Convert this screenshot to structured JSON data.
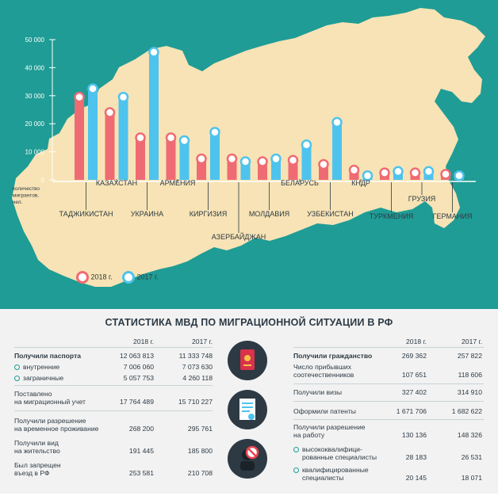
{
  "chart_data": {
    "type": "bar",
    "ylabel": "количество мигрантов, чел.",
    "ylim": [
      0,
      50000
    ],
    "yticks": [
      "0",
      "10 000",
      "20 000",
      "30 000",
      "40 000",
      "50 000"
    ],
    "categories": [
      "ТАДЖИКИСТАН",
      "КАЗАХСТАН",
      "УКРАИНА",
      "АРМЕНИЯ",
      "КИРГИЗИЯ",
      "АЗЕРБАЙДЖАН",
      "МОЛДАВИЯ",
      "БЕЛАРУСЬ",
      "УЗБЕКИСТАН",
      "КНДР",
      "ТУРКМЕНИЯ",
      "ГРУЗИЯ",
      "ГЕРМАНИЯ"
    ],
    "series": [
      {
        "name": "2018 г.",
        "color": "#ef6b73",
        "values": [
          29500,
          24000,
          15000,
          15000,
          7500,
          7500,
          6500,
          7000,
          5500,
          3500,
          2500,
          2500,
          2000
        ]
      },
      {
        "name": "2017 г.",
        "color": "#4ec3ee",
        "values": [
          32500,
          29500,
          45500,
          14000,
          17000,
          6500,
          7500,
          12500,
          20500,
          1500,
          3000,
          3000,
          1500
        ]
      }
    ],
    "legend": "bottom-left"
  },
  "title": "СТАТИСТИКА МВД ПО МИГРАЦИОННОЙ СИТУАЦИИ В РФ",
  "left_table": {
    "col1": "2018 г.",
    "col2": "2017 г.",
    "rows": [
      {
        "label": "Получили паспорта",
        "v2018": "12 063 813",
        "v2017": "11 333 748"
      },
      {
        "label": "внутренние",
        "v2018": "7 006 060",
        "v2017": "7 073 630"
      },
      {
        "label": "заграничные",
        "v2018": "5 057 753",
        "v2017": "4 260 118"
      },
      {
        "label": "Поставлено",
        "label2": "на миграционный учет",
        "v2018": "17 764 489",
        "v2017": "15 710 227"
      },
      {
        "label": "Получили разрешение",
        "label2": "на временное проживание",
        "v2018": "268 200",
        "v2017": "295 761"
      },
      {
        "label": "Получили вид",
        "label2": "на жительство",
        "v2018": "191 445",
        "v2017": "185 800"
      },
      {
        "label": "Был запрещен",
        "label2": "въезд в РФ",
        "v2018": "253 581",
        "v2017": "210 708"
      }
    ]
  },
  "right_table": {
    "col1": "2018 г.",
    "col2": "2017 г.",
    "rows": [
      {
        "label": "Получили гражданство",
        "v2018": "269 362",
        "v2017": "257 822"
      },
      {
        "label": "Число прибывших",
        "label2": "соотечественников",
        "v2018": "107 651",
        "v2017": "118 606"
      },
      {
        "label": "Получили визы",
        "v2018": "327 402",
        "v2017": "314 910"
      },
      {
        "label": "Оформили патенты",
        "v2018": "1 671 706",
        "v2017": "1 682 622"
      },
      {
        "label": "Получили разрешение",
        "label2": "на работу",
        "v2018": "130 136",
        "v2017": "148 326"
      },
      {
        "label": "высококвалифици-",
        "label2": "рованные специалисты",
        "v2018": "28 183",
        "v2017": "26 531"
      },
      {
        "label": "квалифицированные",
        "label2": "специалисты",
        "v2018": "20 145",
        "v2017": "18 071"
      }
    ]
  },
  "icons": [
    "passport-icon",
    "document-icon",
    "prohibited-person-icon"
  ],
  "colors": {
    "background": "#1f9c95",
    "map": "#f7e3b5",
    "bar2018": "#ef6b73",
    "bar2017": "#4ec3ee",
    "panel": "#f2f2f2",
    "dark": "#2d3a44"
  }
}
